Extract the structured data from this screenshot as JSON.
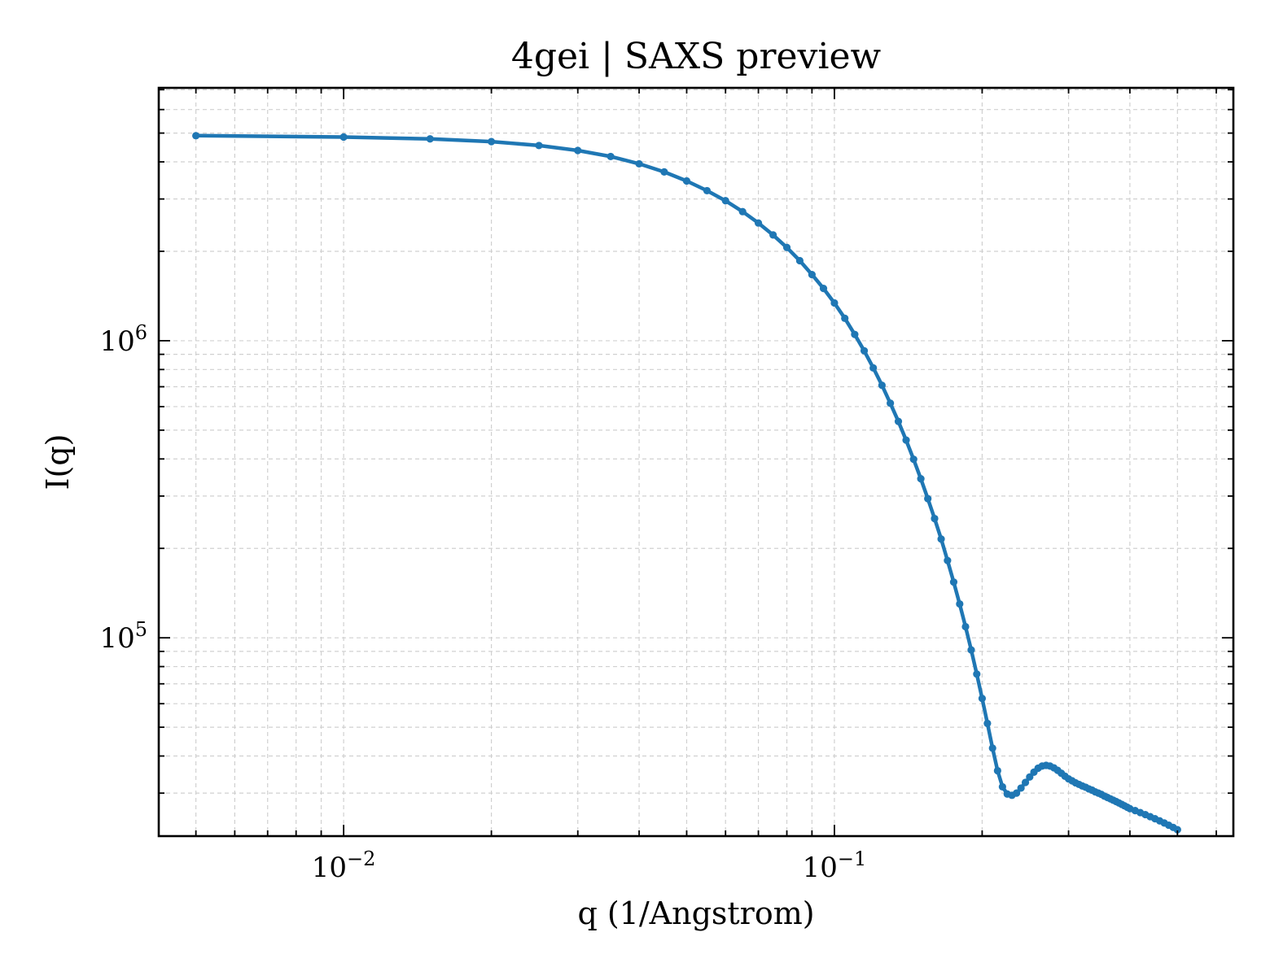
{
  "chart_data": {
    "type": "line",
    "title": "4gei | SAXS preview",
    "xlabel": "q (1/Angstrom)",
    "ylabel": "I(q)",
    "xscale": "log",
    "yscale": "log",
    "xlim": [
      0.0042,
      0.65
    ],
    "ylim": [
      21500,
      7100000
    ],
    "grid": true,
    "legend": "none",
    "x_ticks": [
      {
        "value": 0.01,
        "base": "10",
        "exp": "−2"
      },
      {
        "value": 0.1,
        "base": "10",
        "exp": "−1"
      }
    ],
    "y_ticks": [
      {
        "value": 100000,
        "base": "10",
        "exp": "5"
      },
      {
        "value": 1000000,
        "base": "10",
        "exp": "6"
      }
    ],
    "series": [
      {
        "color": "#1f77b4",
        "x": [
          0.005,
          0.01,
          0.015,
          0.02,
          0.025,
          0.03,
          0.035,
          0.04,
          0.045,
          0.05,
          0.055,
          0.06,
          0.065,
          0.07,
          0.075,
          0.08,
          0.085,
          0.09,
          0.095,
          0.1,
          0.105,
          0.11,
          0.115,
          0.12,
          0.125,
          0.13,
          0.135,
          0.14,
          0.145,
          0.15,
          0.155,
          0.16,
          0.165,
          0.17,
          0.175,
          0.18,
          0.185,
          0.19,
          0.195,
          0.2,
          0.205,
          0.21,
          0.215,
          0.22,
          0.225,
          0.23,
          0.235,
          0.24,
          0.245,
          0.25,
          0.255,
          0.26,
          0.265,
          0.27,
          0.275,
          0.28,
          0.285,
          0.29,
          0.295,
          0.3,
          0.305,
          0.31,
          0.315,
          0.32,
          0.325,
          0.33,
          0.335,
          0.34,
          0.345,
          0.35,
          0.355,
          0.36,
          0.365,
          0.37,
          0.375,
          0.38,
          0.385,
          0.39,
          0.395,
          0.4,
          0.41,
          0.42,
          0.43,
          0.44,
          0.45,
          0.46,
          0.47,
          0.48,
          0.49,
          0.5
        ],
        "y": [
          4900000,
          4850000,
          4780000,
          4680000,
          4540000,
          4370000,
          4170000,
          3940000,
          3700000,
          3450000,
          3200000,
          2960000,
          2720000,
          2490000,
          2270000,
          2060000,
          1860000,
          1670000,
          1500000,
          1340000,
          1190000,
          1050000,
          925000,
          810000,
          708000,
          616000,
          535000,
          463000,
          399000,
          343000,
          294000,
          252000,
          215000,
          182000,
          154000,
          130000,
          109000,
          91000,
          75500,
          62500,
          51500,
          42500,
          35700,
          31500,
          29800,
          29500,
          30000,
          31200,
          32600,
          34000,
          35300,
          36400,
          37000,
          37200,
          37000,
          36500,
          35800,
          35000,
          34200,
          33500,
          33000,
          32500,
          32100,
          31700,
          31400,
          31000,
          30700,
          30300,
          30000,
          29700,
          29300,
          29000,
          28700,
          28400,
          28100,
          27800,
          27500,
          27200,
          26900,
          26600,
          26200,
          25800,
          25400,
          25000,
          24600,
          24200,
          23800,
          23400,
          23000,
          22600
        ]
      }
    ]
  }
}
